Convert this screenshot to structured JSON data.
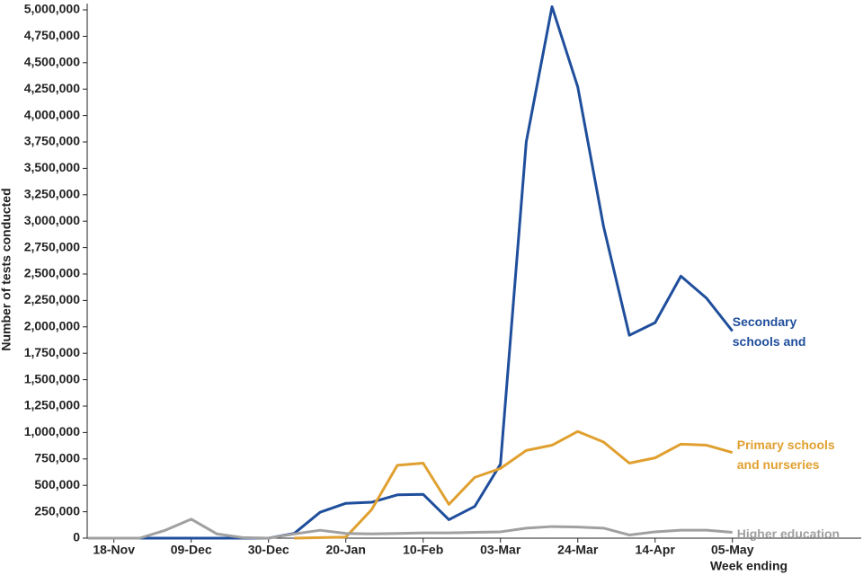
{
  "chart_data": {
    "type": "line",
    "y_label": "Number of tests conducted",
    "x_label": "Week ending",
    "categories": [
      null,
      "18-Nov",
      null,
      null,
      "09-Dec",
      null,
      null,
      "30-Dec",
      null,
      null,
      "20-Jan",
      null,
      null,
      "10-Feb",
      null,
      null,
      "03-Mar",
      null,
      null,
      "24-Mar",
      null,
      null,
      "14-Apr",
      null,
      null,
      "05-May"
    ],
    "series": [
      {
        "name": "Secondary schools and colleges",
        "color": "#1f4e9c",
        "values": [
          0,
          0,
          0,
          0,
          0,
          0,
          0,
          0,
          45000,
          245000,
          330000,
          340000,
          410000,
          415000,
          175000,
          300000,
          700000,
          3750000,
          5030000,
          4270000,
          2950000,
          1920000,
          2040000,
          2480000,
          2270000,
          1960000
        ]
      },
      {
        "name": "Primary schools and nurseries",
        "color": "#e0a030",
        "values": [
          null,
          null,
          null,
          null,
          null,
          null,
          null,
          null,
          0,
          5000,
          10000,
          270000,
          690000,
          710000,
          320000,
          575000,
          660000,
          830000,
          880000,
          1010000,
          910000,
          710000,
          760000,
          890000,
          880000,
          810000
        ]
      },
      {
        "name": "Higher education",
        "color": "#a0a0a0",
        "values": [
          0,
          0,
          0,
          75000,
          180000,
          40000,
          5000,
          0,
          40000,
          75000,
          45000,
          40000,
          45000,
          50000,
          50000,
          55000,
          60000,
          95000,
          110000,
          105000,
          95000,
          30000,
          60000,
          75000,
          75000,
          55000
        ]
      }
    ],
    "ylim": [
      0,
      5000000
    ],
    "yticks": [
      {
        "value": 0,
        "label": "0"
      },
      {
        "value": 250000,
        "label": "250,000"
      },
      {
        "value": 500000,
        "label": "500,000"
      },
      {
        "value": 750000,
        "label": "750,000"
      },
      {
        "value": 1000000,
        "label": "1,000,000"
      },
      {
        "value": 1250000,
        "label": "1,250,000"
      },
      {
        "value": 1500000,
        "label": "1,500,000"
      },
      {
        "value": 1750000,
        "label": "1,750,000"
      },
      {
        "value": 2000000,
        "label": "2,000,000"
      },
      {
        "value": 2250000,
        "label": "2,250,000"
      },
      {
        "value": 2500000,
        "label": "2,500,000"
      },
      {
        "value": 2750000,
        "label": "2,750,000"
      },
      {
        "value": 3000000,
        "label": "3,000,000"
      },
      {
        "value": 3250000,
        "label": "3,250,000"
      },
      {
        "value": 3500000,
        "label": "3,500,000"
      },
      {
        "value": 3750000,
        "label": "3,750,000"
      },
      {
        "value": 4000000,
        "label": "4,000,000"
      },
      {
        "value": 4250000,
        "label": "4,250,000"
      },
      {
        "value": 4500000,
        "label": "4,500,000"
      },
      {
        "value": 4750000,
        "label": "4,750,000"
      },
      {
        "value": 5000000,
        "label": "5,000,000"
      }
    ],
    "grid": false
  }
}
